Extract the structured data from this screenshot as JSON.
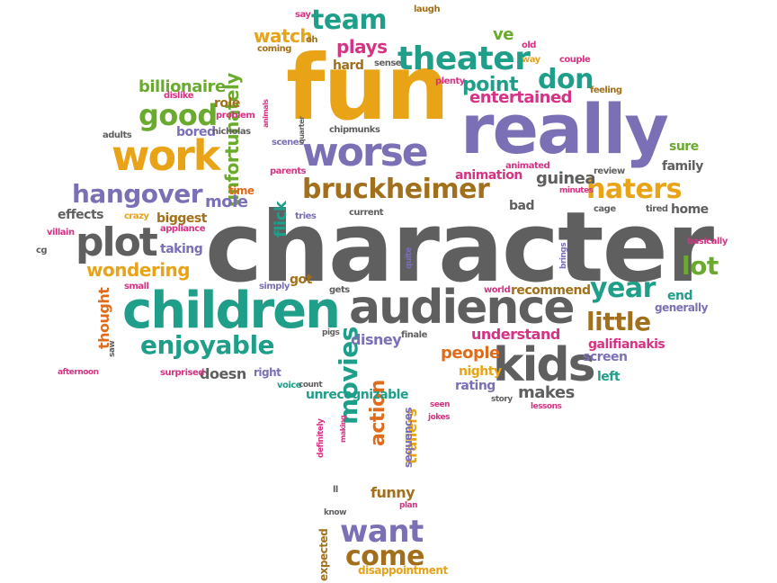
{
  "palette": {
    "orange": "#e8a317",
    "purple": "#7b6fb5",
    "teal": "#1f9e89",
    "green": "#6aaa2e",
    "gray": "#5f5f5f",
    "brown": "#a2701c",
    "pink": "#d63384",
    "deeporange": "#e06c1b"
  },
  "words": [
    {
      "text": "character",
      "color": "gray"
    },
    {
      "text": "fun",
      "color": "orange"
    },
    {
      "text": "really",
      "color": "purple"
    },
    {
      "text": "children",
      "color": "teal"
    },
    {
      "text": "audience",
      "color": "gray"
    },
    {
      "text": "kids",
      "color": "gray"
    },
    {
      "text": "work",
      "color": "orange"
    },
    {
      "text": "worse",
      "color": "purple"
    },
    {
      "text": "bruckheimer",
      "color": "brown"
    },
    {
      "text": "plot",
      "color": "gray"
    },
    {
      "text": "haters",
      "color": "orange"
    },
    {
      "text": "hangover",
      "color": "purple"
    },
    {
      "text": "theater",
      "color": "teal"
    },
    {
      "text": "enjoyable",
      "color": "teal"
    },
    {
      "text": "good",
      "color": "green"
    },
    {
      "text": "team",
      "color": "teal"
    },
    {
      "text": "don",
      "color": "teal"
    },
    {
      "text": "year",
      "color": "teal"
    },
    {
      "text": "little",
      "color": "brown"
    },
    {
      "text": "lot",
      "color": "green"
    },
    {
      "text": "want",
      "color": "purple"
    },
    {
      "text": "come",
      "color": "brown"
    },
    {
      "text": "movies",
      "color": "teal"
    },
    {
      "text": "action",
      "color": "deeporange"
    },
    {
      "text": "wondering",
      "color": "orange"
    },
    {
      "text": "unfortunately",
      "color": "green"
    },
    {
      "text": "watch",
      "color": "orange"
    },
    {
      "text": "plays",
      "color": "pink"
    },
    {
      "text": "point",
      "color": "teal"
    },
    {
      "text": "entertained",
      "color": "pink"
    },
    {
      "text": "billionaire",
      "color": "green"
    },
    {
      "text": "mole",
      "color": "purple"
    },
    {
      "text": "flick",
      "color": "teal"
    },
    {
      "text": "guinea",
      "color": "gray"
    },
    {
      "text": "people",
      "color": "deeporange"
    },
    {
      "text": "understand",
      "color": "pink"
    },
    {
      "text": "disney",
      "color": "purple"
    },
    {
      "text": "doesn",
      "color": "gray"
    },
    {
      "text": "thought",
      "color": "deeporange"
    },
    {
      "text": "galifianakis",
      "color": "pink"
    },
    {
      "text": "makes",
      "color": "gray"
    },
    {
      "text": "funny",
      "color": "brown"
    },
    {
      "text": "trailers",
      "color": "orange"
    },
    {
      "text": "ve",
      "color": "green"
    },
    {
      "text": "role",
      "color": "brown"
    },
    {
      "text": "bored",
      "color": "purple"
    },
    {
      "text": "effects",
      "color": "gray"
    },
    {
      "text": "biggest",
      "color": "brown"
    },
    {
      "text": "taking",
      "color": "purple"
    },
    {
      "text": "hard",
      "color": "brown"
    },
    {
      "text": "time",
      "color": "deeporange"
    },
    {
      "text": "got",
      "color": "brown"
    },
    {
      "text": "recommend",
      "color": "brown"
    },
    {
      "text": "bad",
      "color": "gray"
    },
    {
      "text": "animation",
      "color": "pink"
    },
    {
      "text": "family",
      "color": "gray"
    },
    {
      "text": "sure",
      "color": "green"
    },
    {
      "text": "home",
      "color": "gray"
    },
    {
      "text": "end",
      "color": "teal"
    },
    {
      "text": "generally",
      "color": "purple"
    },
    {
      "text": "screen",
      "color": "purple"
    },
    {
      "text": "left",
      "color": "teal"
    },
    {
      "text": "rating",
      "color": "purple"
    },
    {
      "text": "nighty",
      "color": "orange"
    },
    {
      "text": "unrecognizable",
      "color": "teal"
    },
    {
      "text": "sequences",
      "color": "purple"
    },
    {
      "text": "disappointment",
      "color": "orange"
    },
    {
      "text": "expected",
      "color": "brown"
    },
    {
      "text": "right",
      "color": "purple"
    },
    {
      "text": "appliance",
      "color": "pink"
    },
    {
      "text": "dislike",
      "color": "pink"
    },
    {
      "text": "problem",
      "color": "pink"
    },
    {
      "text": "nicholas",
      "color": "gray"
    },
    {
      "text": "adults",
      "color": "gray"
    },
    {
      "text": "coming",
      "color": "brown"
    },
    {
      "text": "say",
      "color": "pink"
    },
    {
      "text": "oh",
      "color": "brown"
    },
    {
      "text": "laugh",
      "color": "brown"
    },
    {
      "text": "sense",
      "color": "gray"
    },
    {
      "text": "old",
      "color": "pink"
    },
    {
      "text": "way",
      "color": "orange"
    },
    {
      "text": "couple",
      "color": "pink"
    },
    {
      "text": "plenty",
      "color": "pink"
    },
    {
      "text": "feeling",
      "color": "brown"
    },
    {
      "text": "animals",
      "color": "pink"
    },
    {
      "text": "scenes",
      "color": "purple"
    },
    {
      "text": "quarter",
      "color": "gray"
    },
    {
      "text": "chipmunks",
      "color": "gray"
    },
    {
      "text": "parents",
      "color": "pink"
    },
    {
      "text": "animated",
      "color": "pink"
    },
    {
      "text": "review",
      "color": "gray"
    },
    {
      "text": "minutes",
      "color": "pink"
    },
    {
      "text": "cage",
      "color": "gray"
    },
    {
      "text": "tired",
      "color": "gray"
    },
    {
      "text": "basically",
      "color": "pink"
    },
    {
      "text": "current",
      "color": "gray"
    },
    {
      "text": "tries",
      "color": "purple"
    },
    {
      "text": "crazy",
      "color": "orange"
    },
    {
      "text": "villain",
      "color": "pink"
    },
    {
      "text": "cg",
      "color": "gray"
    },
    {
      "text": "small",
      "color": "pink"
    },
    {
      "text": "simply",
      "color": "purple"
    },
    {
      "text": "gets",
      "color": "gray"
    },
    {
      "text": "world",
      "color": "pink"
    },
    {
      "text": "pigs",
      "color": "gray"
    },
    {
      "text": "finale",
      "color": "gray"
    },
    {
      "text": "quite",
      "color": "purple"
    },
    {
      "text": "brings",
      "color": "purple"
    },
    {
      "text": "saw",
      "color": "gray"
    },
    {
      "text": "afternoon",
      "color": "pink"
    },
    {
      "text": "surprised",
      "color": "pink"
    },
    {
      "text": "voice",
      "color": "teal"
    },
    {
      "text": "count",
      "color": "gray"
    },
    {
      "text": "story",
      "color": "gray"
    },
    {
      "text": "lessons",
      "color": "pink"
    },
    {
      "text": "seen",
      "color": "pink"
    },
    {
      "text": "jokes",
      "color": "pink"
    },
    {
      "text": "making",
      "color": "pink"
    },
    {
      "text": "definitely",
      "color": "pink"
    },
    {
      "text": "ll",
      "color": "gray"
    },
    {
      "text": "know",
      "color": "gray"
    },
    {
      "text": "plan",
      "color": "pink"
    }
  ]
}
